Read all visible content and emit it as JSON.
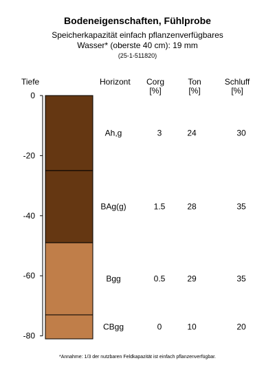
{
  "chart_data": {
    "type": "table",
    "title": "Bodeneigenschaften, Fühlprobe",
    "subtitle_line1": "Speicherkapazität einfach pflanzenverfügbares",
    "subtitle_line2": "Wasser* (oberste 40 cm): 19 mm",
    "subtitle_line3": "(25-1-511820)",
    "ylabel": "Tiefe",
    "ylim": [
      -81,
      0
    ],
    "yticks": [
      0,
      -20,
      -40,
      -60,
      -80
    ],
    "columns": [
      {
        "key": "horizon",
        "label": "Horizont",
        "unit": ""
      },
      {
        "key": "corg",
        "label": "Corg",
        "unit": "[%]"
      },
      {
        "key": "ton",
        "label": "Ton",
        "unit": "[%]"
      },
      {
        "key": "schluff",
        "label": "Schluff",
        "unit": "[%]"
      }
    ],
    "horizons": [
      {
        "name": "Ah,g",
        "top": 0,
        "bottom": -25,
        "corg": "3",
        "ton": "24",
        "schluff": "30",
        "color": "#653712"
      },
      {
        "name": "BAg(g)",
        "top": -25,
        "bottom": -49,
        "corg": "1.5",
        "ton": "28",
        "schluff": "35",
        "color": "#653712"
      },
      {
        "name": "Bgg",
        "top": -49,
        "bottom": -73,
        "corg": "0.5",
        "ton": "29",
        "schluff": "35",
        "color": "#c07e49"
      },
      {
        "name": "CBgg",
        "top": -73,
        "bottom": -81,
        "corg": "0",
        "ton": "10",
        "schluff": "20",
        "color": "#c07e49"
      }
    ],
    "footnote": "*Annahme: 1/3 der nutzbaren Feldkapazität ist einfach pflanzenverfügbar."
  }
}
